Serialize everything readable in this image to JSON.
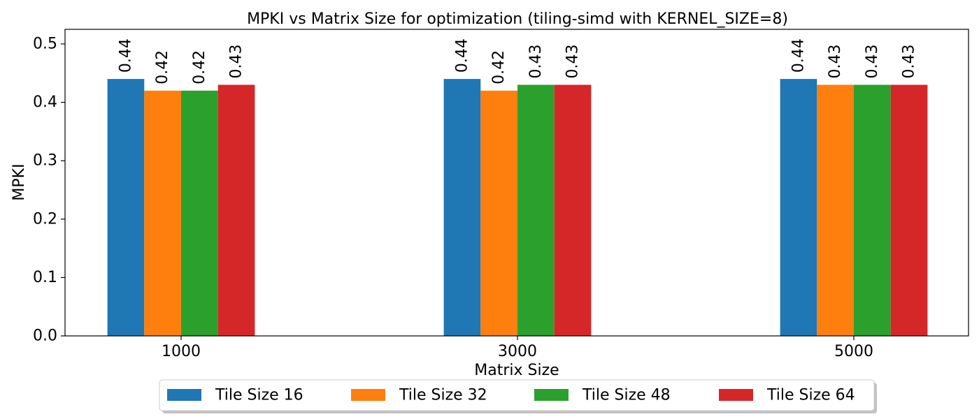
{
  "chart_data": {
    "type": "bar",
    "title": "MPKI vs Matrix Size for optimization (tiling-simd with KERNEL_SIZE=8)",
    "xlabel": "Matrix Size",
    "ylabel": "MPKI",
    "categories": [
      "1000",
      "3000",
      "5000"
    ],
    "ylim": [
      0,
      0.525
    ],
    "yticks": [
      0.0,
      0.1,
      0.2,
      0.3,
      0.4,
      0.5
    ],
    "ytick_labels": [
      "0.0",
      "0.1",
      "0.2",
      "0.3",
      "0.4",
      "0.5"
    ],
    "grid": false,
    "legend_position": "bottom-center",
    "series": [
      {
        "name": "Tile Size 16",
        "color": "#1f77b4",
        "values": [
          0.44,
          0.44,
          0.44
        ],
        "labels": [
          "0.44",
          "0.44",
          "0.44"
        ]
      },
      {
        "name": "Tile Size 32",
        "color": "#ff7f0e",
        "values": [
          0.42,
          0.42,
          0.43
        ],
        "labels": [
          "0.42",
          "0.42",
          "0.43"
        ]
      },
      {
        "name": "Tile Size 48",
        "color": "#2ca02c",
        "values": [
          0.42,
          0.43,
          0.43
        ],
        "labels": [
          "0.42",
          "0.43",
          "0.43"
        ]
      },
      {
        "name": "Tile Size 64",
        "color": "#d62728",
        "values": [
          0.43,
          0.43,
          0.43
        ],
        "labels": [
          "0.43",
          "0.43",
          "0.43"
        ]
      }
    ]
  }
}
